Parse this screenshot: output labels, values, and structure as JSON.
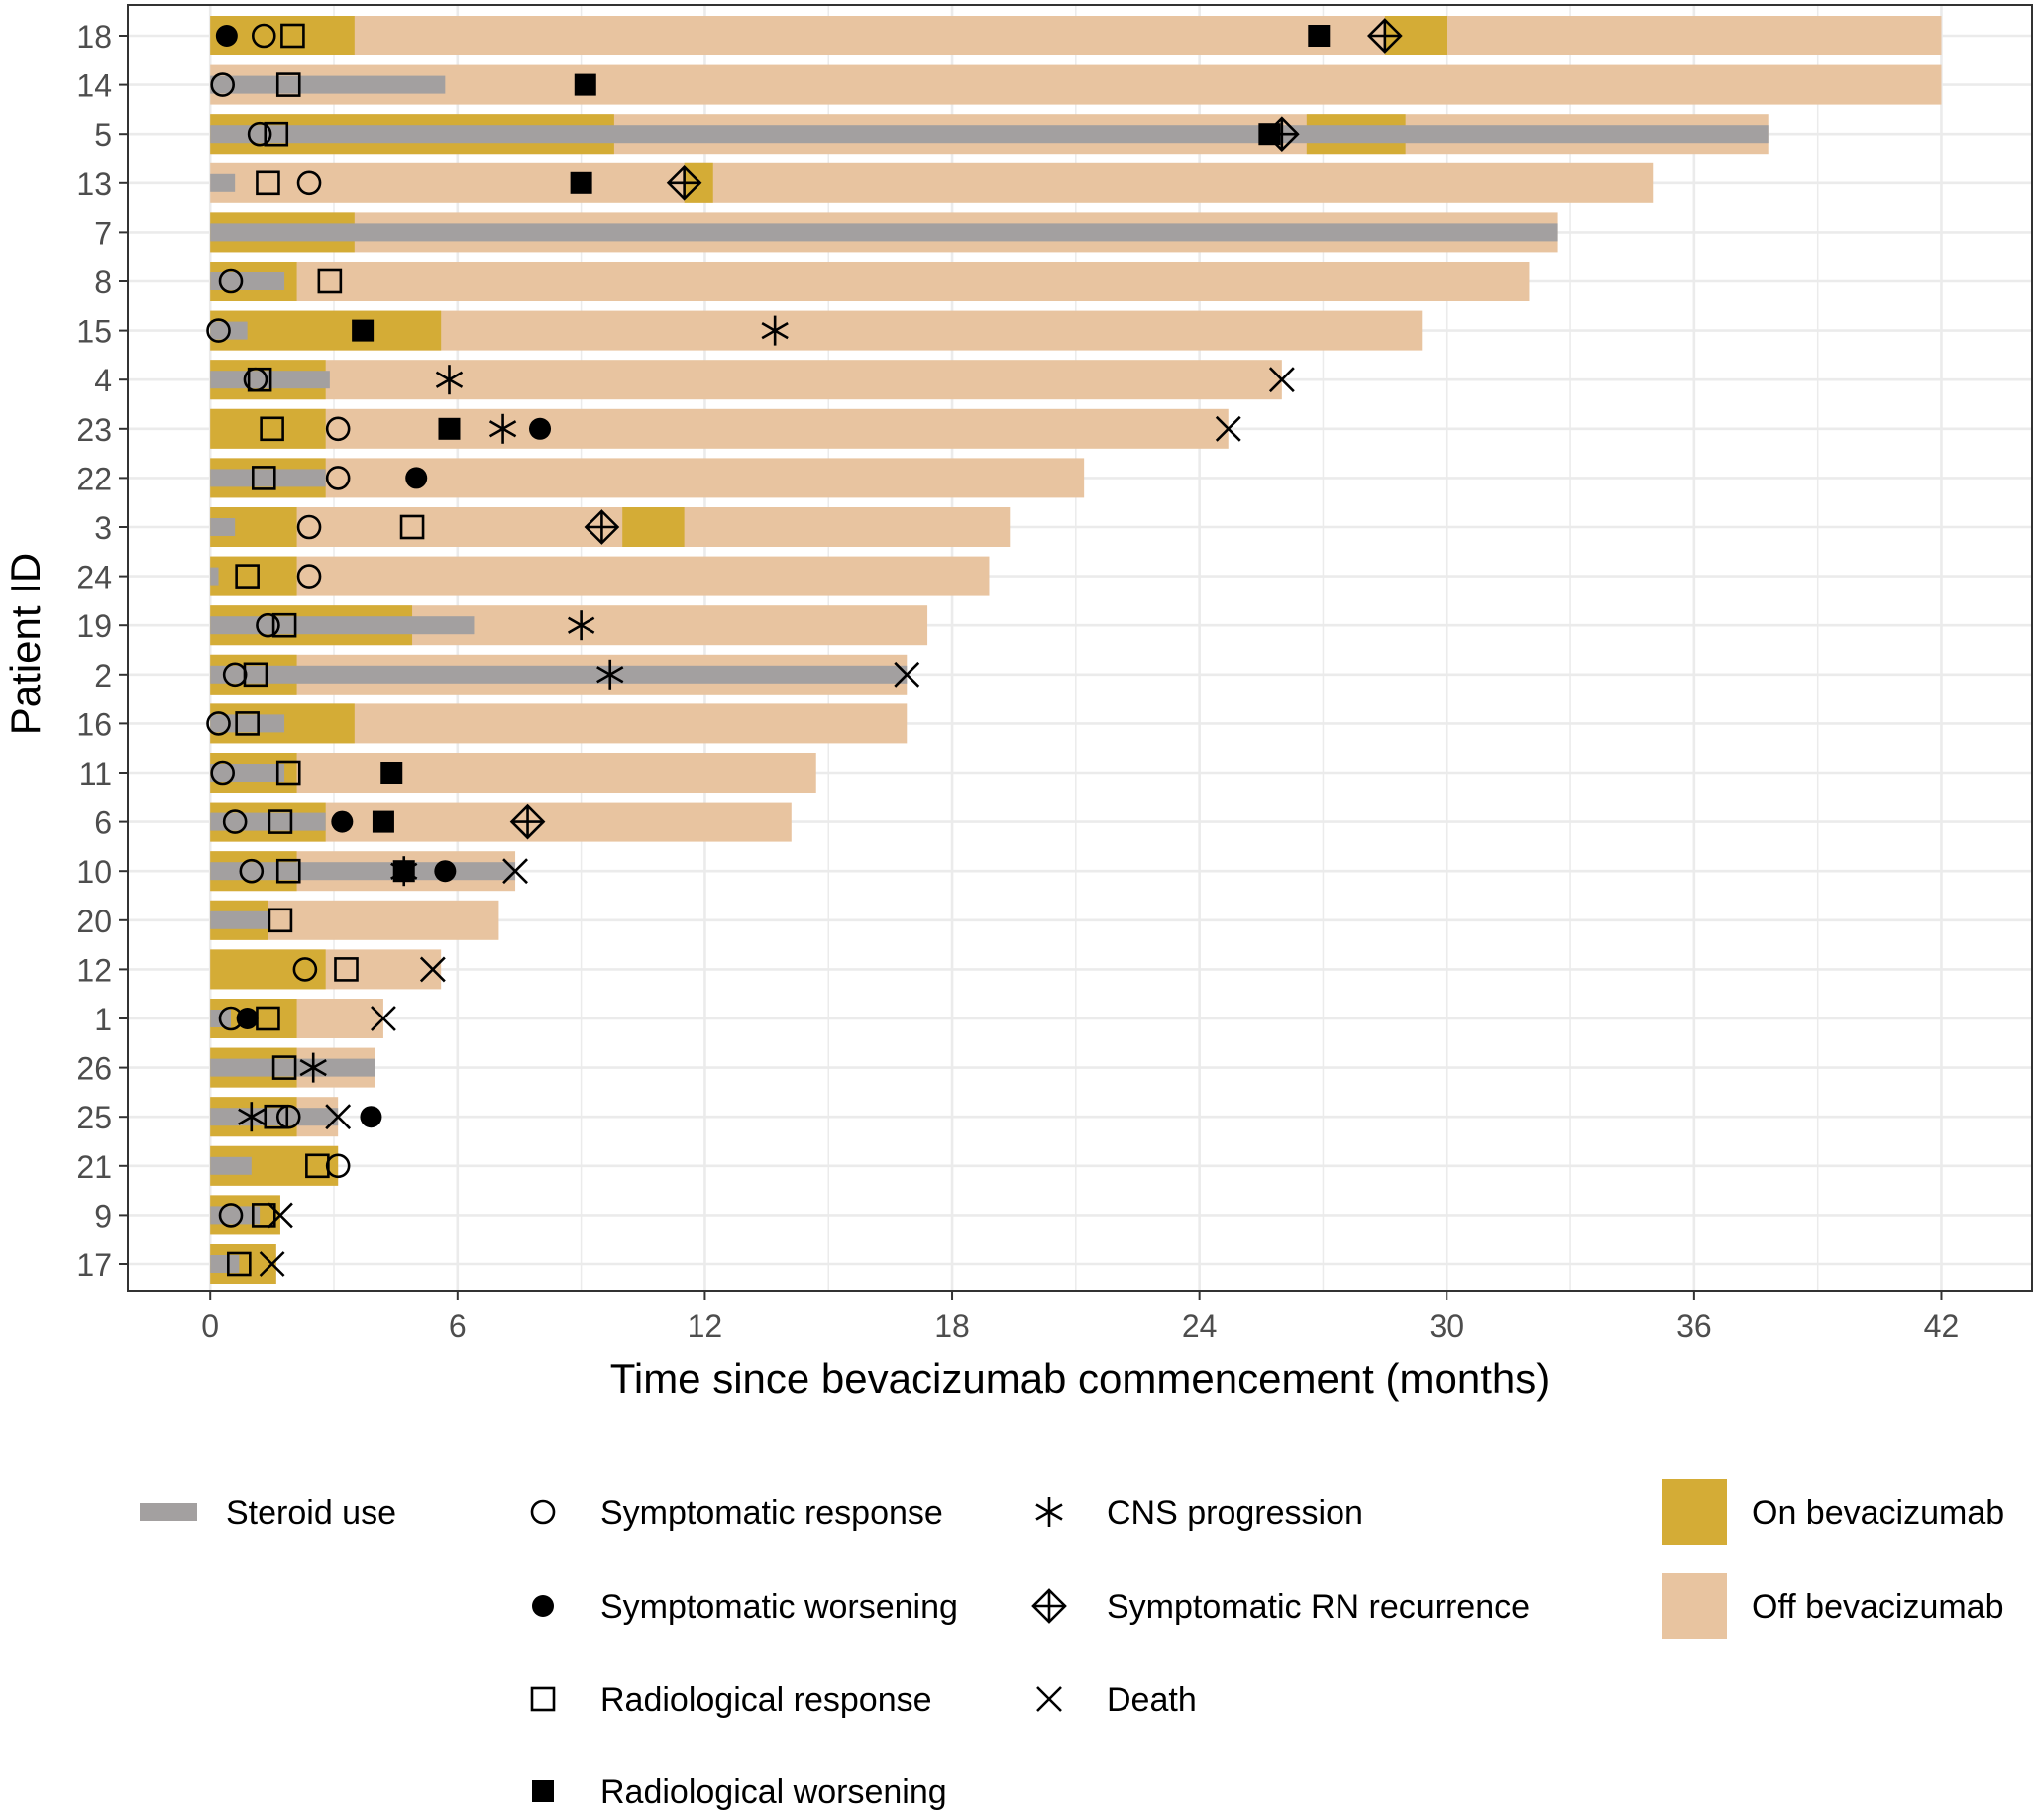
{
  "chart_data": {
    "type": "swimmer",
    "xlabel": "Time since bevacizumab commencement (months)",
    "ylabel": "Patient ID",
    "xlim": [
      -2,
      44.2
    ],
    "xticks": [
      0,
      6,
      12,
      18,
      24,
      30,
      36,
      42
    ],
    "colors": {
      "on_bev": "#D4AC36",
      "off_bev": "#E8C4A0",
      "steroid": "#A3A0A0",
      "grid": "#EBEBEB",
      "panel_border": "#333333",
      "axis_text": "#4D4D4D",
      "marker": "#000000"
    },
    "legend": {
      "steroid": "Steroid use",
      "symptomatic_response": "Symptomatic response",
      "symptomatic_worsening": "Symptomatic worsening",
      "radiological_response": "Radiological response",
      "radiological_worsening": "Radiological worsening",
      "cns_progression": "CNS progression",
      "rn_recurrence": "Symptomatic RN recurrence",
      "death": "Death",
      "on_bev": "On bevacizumab",
      "off_bev": "Off bevacizumab"
    },
    "patients": [
      {
        "id": "18",
        "total": 42,
        "on": [
          [
            0,
            3.5
          ],
          [
            28.5,
            30
          ]
        ],
        "steroid": [],
        "events": {
          "sym_resp": [
            1.3
          ],
          "sym_worse": [
            0.4
          ],
          "rad_resp": [
            2
          ],
          "rad_worse": [
            26.9
          ],
          "cns": [],
          "rn": [
            28.5
          ],
          "death": []
        }
      },
      {
        "id": "14",
        "total": 42,
        "on": [],
        "steroid": [
          [
            0,
            5.7
          ]
        ],
        "events": {
          "sym_resp": [
            0.3
          ],
          "sym_worse": [],
          "rad_resp": [
            1.9
          ],
          "rad_worse": [
            9.1
          ],
          "cns": [],
          "rn": [],
          "death": []
        }
      },
      {
        "id": "5",
        "total": 37.8,
        "on": [
          [
            0,
            9.8
          ],
          [
            26.6,
            29
          ]
        ],
        "steroid": [
          [
            0,
            37.8
          ]
        ],
        "events": {
          "sym_resp": [
            1.2
          ],
          "sym_worse": [],
          "rad_resp": [
            1.6
          ],
          "rad_worse": [
            25.7
          ],
          "cns": [],
          "rn": [
            26
          ],
          "death": []
        }
      },
      {
        "id": "13",
        "total": 35,
        "on": [
          [
            11.5,
            12.2
          ]
        ],
        "steroid": [
          [
            0,
            0.6
          ]
        ],
        "events": {
          "sym_resp": [
            2.4
          ],
          "sym_worse": [],
          "rad_resp": [
            1.4
          ],
          "rad_worse": [
            9
          ],
          "cns": [],
          "rn": [
            11.5
          ],
          "death": []
        }
      },
      {
        "id": "7",
        "total": 32.7,
        "on": [
          [
            0,
            3.5
          ]
        ],
        "steroid": [
          [
            0,
            32.7
          ]
        ],
        "events": {
          "sym_resp": [],
          "sym_worse": [],
          "rad_resp": [],
          "rad_worse": [],
          "cns": [],
          "rn": [],
          "death": []
        }
      },
      {
        "id": "8",
        "total": 32,
        "on": [
          [
            0,
            2.1
          ]
        ],
        "steroid": [
          [
            0,
            1.8
          ]
        ],
        "events": {
          "sym_resp": [
            0.5
          ],
          "sym_worse": [],
          "rad_resp": [
            2.9
          ],
          "rad_worse": [],
          "cns": [],
          "rn": [],
          "death": []
        }
      },
      {
        "id": "15",
        "total": 29.4,
        "on": [
          [
            0,
            5.6
          ]
        ],
        "steroid": [
          [
            0,
            0.9
          ]
        ],
        "events": {
          "sym_resp": [
            0.2
          ],
          "sym_worse": [],
          "rad_resp": [],
          "rad_worse": [
            3.7
          ],
          "cns": [
            13.7
          ],
          "rn": [],
          "death": []
        }
      },
      {
        "id": "4",
        "total": 26,
        "on": [
          [
            0,
            2.8
          ]
        ],
        "steroid": [
          [
            0,
            2.9
          ]
        ],
        "events": {
          "sym_resp": [
            1.1
          ],
          "sym_worse": [],
          "rad_resp": [
            1.2
          ],
          "rad_worse": [],
          "cns": [
            5.8
          ],
          "rn": [],
          "death": [
            26
          ]
        }
      },
      {
        "id": "23",
        "total": 24.7,
        "on": [
          [
            0,
            2.8
          ]
        ],
        "steroid": [],
        "events": {
          "sym_resp": [
            3.1
          ],
          "sym_worse": [
            8
          ],
          "rad_resp": [
            1.5
          ],
          "rad_worse": [
            5.8
          ],
          "cns": [
            7.1
          ],
          "rn": [],
          "death": [
            24.7
          ]
        }
      },
      {
        "id": "22",
        "total": 21.2,
        "on": [
          [
            0,
            2.8
          ]
        ],
        "steroid": [
          [
            0,
            2.8
          ]
        ],
        "events": {
          "sym_resp": [
            3.1
          ],
          "sym_worse": [
            5
          ],
          "rad_resp": [
            1.3
          ],
          "rad_worse": [],
          "cns": [],
          "rn": [],
          "death": []
        }
      },
      {
        "id": "3",
        "total": 19.4,
        "on": [
          [
            0,
            2.1
          ],
          [
            10,
            11.5
          ]
        ],
        "steroid": [
          [
            0,
            0.6
          ]
        ],
        "events": {
          "sym_resp": [
            2.4
          ],
          "sym_worse": [],
          "rad_resp": [
            4.9
          ],
          "rad_worse": [],
          "cns": [],
          "rn": [
            9.5
          ],
          "death": []
        }
      },
      {
        "id": "24",
        "total": 18.9,
        "on": [
          [
            0,
            2.1
          ]
        ],
        "steroid": [
          [
            0,
            0.2
          ]
        ],
        "events": {
          "sym_resp": [
            2.4
          ],
          "sym_worse": [],
          "rad_resp": [
            0.9
          ],
          "rad_worse": [],
          "cns": [],
          "rn": [],
          "death": []
        }
      },
      {
        "id": "19",
        "total": 17.4,
        "on": [
          [
            0,
            4.9
          ]
        ],
        "steroid": [
          [
            0,
            6.4
          ]
        ],
        "events": {
          "sym_resp": [
            1.4
          ],
          "sym_worse": [],
          "rad_resp": [
            1.8
          ],
          "rad_worse": [],
          "cns": [
            9
          ],
          "rn": [],
          "death": []
        }
      },
      {
        "id": "2",
        "total": 16.9,
        "on": [
          [
            0,
            2.1
          ]
        ],
        "steroid": [
          [
            0,
            16.9
          ]
        ],
        "events": {
          "sym_resp": [
            0.6
          ],
          "sym_worse": [],
          "rad_resp": [
            1.1
          ],
          "rad_worse": [],
          "cns": [
            9.7
          ],
          "rn": [],
          "death": [
            16.9
          ]
        }
      },
      {
        "id": "16",
        "total": 16.9,
        "on": [
          [
            0,
            3.5
          ]
        ],
        "steroid": [
          [
            0,
            1.8
          ]
        ],
        "events": {
          "sym_resp": [
            0.2
          ],
          "sym_worse": [],
          "rad_resp": [
            0.9
          ],
          "rad_worse": [],
          "cns": [],
          "rn": [],
          "death": []
        }
      },
      {
        "id": "11",
        "total": 14.7,
        "on": [
          [
            0,
            2.1
          ]
        ],
        "steroid": [
          [
            0,
            1.8
          ]
        ],
        "events": {
          "sym_resp": [
            0.3
          ],
          "sym_worse": [],
          "rad_resp": [
            1.9
          ],
          "rad_worse": [
            4.4
          ],
          "cns": [],
          "rn": [],
          "death": []
        }
      },
      {
        "id": "6",
        "total": 14.1,
        "on": [
          [
            0,
            2.8
          ]
        ],
        "steroid": [
          [
            0,
            2.8
          ]
        ],
        "events": {
          "sym_resp": [
            0.6
          ],
          "sym_worse": [
            3.2
          ],
          "rad_resp": [
            1.7
          ],
          "rad_worse": [
            4.2
          ],
          "cns": [],
          "rn": [
            7.7
          ],
          "death": []
        }
      },
      {
        "id": "10",
        "total": 7.4,
        "on": [
          [
            0,
            2.1
          ]
        ],
        "steroid": [
          [
            0,
            7.4
          ]
        ],
        "events": {
          "sym_resp": [
            1
          ],
          "sym_worse": [
            5.7
          ],
          "rad_resp": [
            1.9
          ],
          "rad_worse": [
            4.7
          ],
          "cns": [
            4.7
          ],
          "rn": [],
          "death": [
            7.4
          ]
        }
      },
      {
        "id": "20",
        "total": 7,
        "on": [
          [
            0,
            1.4
          ]
        ],
        "steroid": [
          [
            0,
            1.4
          ]
        ],
        "events": {
          "sym_resp": [],
          "sym_worse": [],
          "rad_resp": [
            1.7
          ],
          "rad_worse": [],
          "cns": [],
          "rn": [],
          "death": []
        }
      },
      {
        "id": "12",
        "total": 5.6,
        "on": [
          [
            0,
            2.8
          ]
        ],
        "steroid": [],
        "events": {
          "sym_resp": [
            2.3
          ],
          "sym_worse": [],
          "rad_resp": [
            3.3
          ],
          "rad_worse": [],
          "cns": [],
          "rn": [],
          "death": [
            5.4
          ]
        }
      },
      {
        "id": "1",
        "total": 4.2,
        "on": [
          [
            0,
            2.1
          ]
        ],
        "steroid": [
          [
            0,
            0.5
          ]
        ],
        "events": {
          "sym_resp": [
            0.5
          ],
          "sym_worse": [
            0.9
          ],
          "rad_resp": [
            1.4
          ],
          "rad_worse": [],
          "cns": [],
          "rn": [],
          "death": [
            4.2
          ]
        }
      },
      {
        "id": "26",
        "total": 4,
        "on": [
          [
            0,
            2.1
          ]
        ],
        "steroid": [
          [
            0,
            4
          ]
        ],
        "events": {
          "sym_resp": [],
          "sym_worse": [],
          "rad_resp": [
            1.8
          ],
          "rad_worse": [],
          "cns": [
            2.5
          ],
          "rn": [],
          "death": []
        }
      },
      {
        "id": "25",
        "total": 3.1,
        "on": [
          [
            0,
            2.1
          ]
        ],
        "steroid": [
          [
            0,
            3.1
          ]
        ],
        "events": {
          "sym_resp": [
            1.9
          ],
          "sym_worse": [
            3.9
          ],
          "rad_resp": [
            1.6
          ],
          "rad_worse": [],
          "cns": [
            1
          ],
          "rn": [],
          "death": [
            3.1
          ]
        }
      },
      {
        "id": "21",
        "total": 3.1,
        "on": [
          [
            0,
            3.1
          ]
        ],
        "steroid": [
          [
            0,
            1
          ]
        ],
        "events": {
          "sym_resp": [
            3.1
          ],
          "sym_worse": [],
          "rad_resp": [
            2.6
          ],
          "rad_worse": [],
          "cns": [],
          "rn": [],
          "death": []
        }
      },
      {
        "id": "9",
        "total": 1.7,
        "on": [
          [
            0,
            1.7
          ]
        ],
        "steroid": [
          [
            0,
            1.2
          ]
        ],
        "events": {
          "sym_resp": [
            0.5
          ],
          "sym_worse": [],
          "rad_resp": [
            1.3
          ],
          "rad_worse": [],
          "cns": [],
          "rn": [],
          "death": [
            1.7
          ]
        }
      },
      {
        "id": "17",
        "total": 1.6,
        "on": [
          [
            0,
            1.6
          ]
        ],
        "steroid": [
          [
            0,
            0.7
          ]
        ],
        "events": {
          "sym_resp": [],
          "sym_worse": [],
          "rad_resp": [
            0.7
          ],
          "rad_worse": [],
          "cns": [],
          "rn": [],
          "death": [
            1.5
          ]
        }
      }
    ]
  }
}
